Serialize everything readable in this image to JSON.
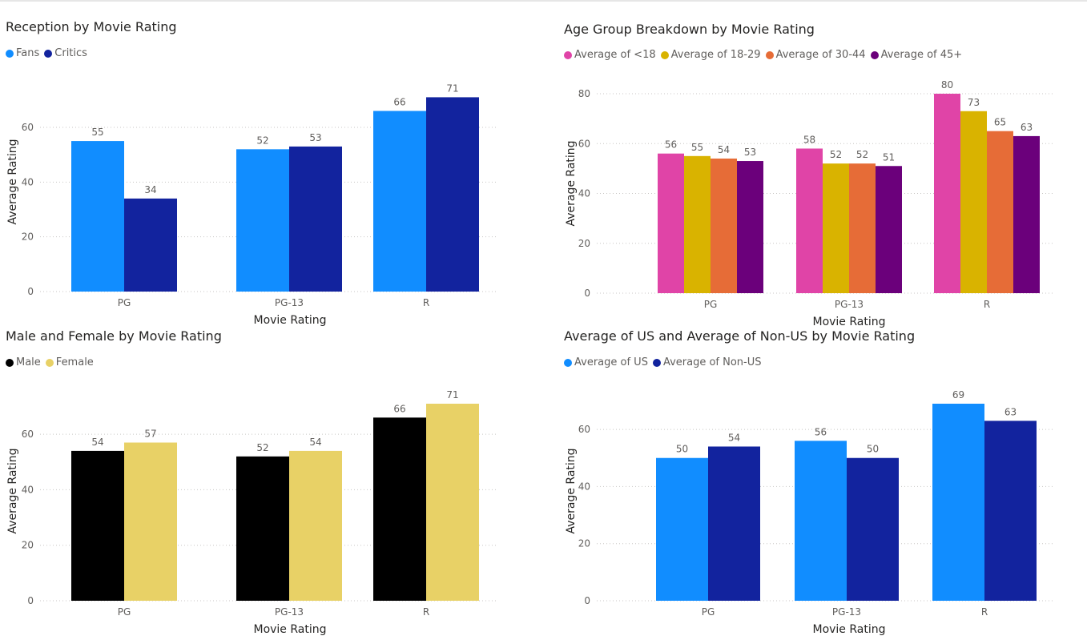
{
  "chart_data": [
    {
      "id": "reception",
      "type": "bar",
      "title": "Reception by Movie Rating",
      "xlabel": "Movie Rating",
      "ylabel": "Average Rating",
      "categories": [
        "PG",
        "PG-13",
        "R"
      ],
      "ylim": [
        0,
        72
      ],
      "yticks": [
        0,
        20,
        40,
        60
      ],
      "series": [
        {
          "name": "Fans",
          "color": "#118dff",
          "values": [
            55,
            52,
            66
          ]
        },
        {
          "name": "Critics",
          "color": "#12239e",
          "values": [
            34,
            53,
            71
          ]
        }
      ]
    },
    {
      "id": "age",
      "type": "bar",
      "title": "Age Group Breakdown by Movie Rating",
      "xlabel": "Movie Rating",
      "ylabel": "Average Rating",
      "categories": [
        "PG",
        "PG-13",
        "R"
      ],
      "ylim": [
        0,
        80
      ],
      "yticks": [
        0,
        20,
        40,
        60,
        80
      ],
      "series": [
        {
          "name": "Average of <18",
          "color": "#e044a7",
          "values": [
            56,
            58,
            80
          ]
        },
        {
          "name": "Average of 18-29",
          "color": "#d9b300",
          "values": [
            55,
            52,
            73
          ]
        },
        {
          "name": "Average of 30-44",
          "color": "#e66c37",
          "values": [
            54,
            52,
            65
          ]
        },
        {
          "name": "Average of 45+",
          "color": "#6b007b",
          "values": [
            53,
            51,
            63
          ]
        }
      ]
    },
    {
      "id": "gender",
      "type": "bar",
      "title": "Male and Female by Movie Rating",
      "xlabel": "Movie Rating",
      "ylabel": "Average Rating",
      "categories": [
        "PG",
        "PG-13",
        "R"
      ],
      "ylim": [
        0,
        71
      ],
      "yticks": [
        0,
        20,
        40,
        60
      ],
      "series": [
        {
          "name": "Male",
          "color": "#000000",
          "values": [
            54,
            52,
            66
          ]
        },
        {
          "name": "Female",
          "color": "#e8d166",
          "values": [
            57,
            54,
            71
          ]
        }
      ]
    },
    {
      "id": "region",
      "type": "bar",
      "title": "Average of US and Average of Non-US by Movie Rating",
      "xlabel": "Movie Rating",
      "ylabel": "Average Rating",
      "categories": [
        "PG",
        "PG-13",
        "R"
      ],
      "ylim": [
        0,
        69
      ],
      "yticks": [
        0,
        20,
        40,
        60
      ],
      "series": [
        {
          "name": "Average of US",
          "color": "#118dff",
          "values": [
            50,
            56,
            69
          ]
        },
        {
          "name": "Average of Non-US",
          "color": "#12239e",
          "values": [
            54,
            50,
            63
          ]
        }
      ]
    }
  ]
}
